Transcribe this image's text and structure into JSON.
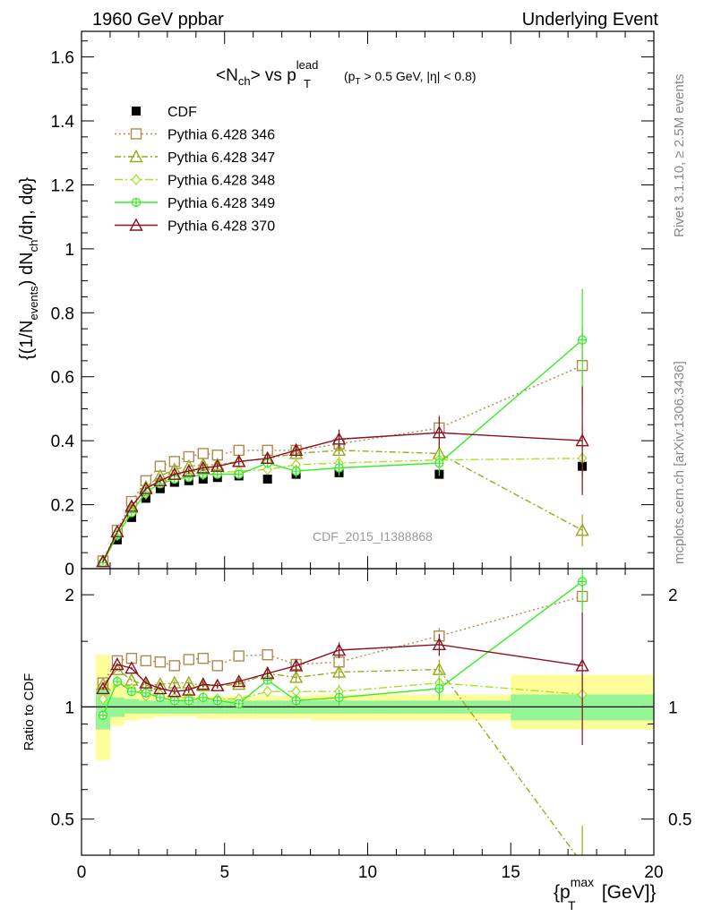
{
  "header": {
    "left": "1960 GeV ppbar",
    "right": "Underlying Event"
  },
  "side": {
    "rivet": "Rivet 3.1.10, ≥ 2.5M events",
    "mcplots": "mcplots.cern.ch [arXiv:1306.3436]"
  },
  "plot_title": {
    "main": "<N",
    "main_sub": "ch",
    "mid": "> vs p",
    "mid_sup": "lead",
    "mid_sub": "T",
    "cut": "(p",
    "cut_sub": "T",
    "cut_rest": " > 0.5 GeV, |η| < 0.8)"
  },
  "watermark": "CDF_2015_I1388868",
  "y_label_main": {
    "a": "{(1/N",
    "a_sub": "events",
    "b": ") dN",
    "b_sub": "ch",
    "c": "/dη, dφ}"
  },
  "y_label_ratio": "Ratio to CDF",
  "x_label": {
    "a": "{p",
    "sup": "max",
    "sub": "T",
    "b": " [GeV]}"
  },
  "colors": {
    "cdf": "#000000",
    "p346": "#b08a4e",
    "p347": "#9aaa1a",
    "p348": "#a9e025",
    "p349": "#33ee22",
    "p370": "#8b1020",
    "band_outer": "#fdfd9a",
    "band_inner": "#95f595"
  },
  "chart_data": [
    {
      "type": "scatter",
      "title": "<Nch> vs pT lead (pT > 0.5 GeV, |eta| < 0.8)",
      "ylabel": "{(1/Nevents) dNch/deta, dphi}",
      "xlim": [
        0,
        20
      ],
      "ylim": [
        0,
        1.68
      ],
      "yticks": [
        0,
        0.2,
        0.4,
        0.6,
        0.8,
        1,
        1.2,
        1.4,
        1.6
      ],
      "ytick_labels": [
        "0",
        "0.2",
        "0.4",
        "0.6",
        "0.8",
        "1",
        "1.2",
        "1.4",
        "1.6"
      ],
      "legend_position": "top-left",
      "x": [
        0.75,
        1.25,
        1.75,
        2.25,
        2.75,
        3.25,
        3.75,
        4.25,
        4.75,
        5.5,
        6.5,
        7.5,
        9.0,
        12.5,
        17.5
      ],
      "series": [
        {
          "name": "CDF",
          "key": "cdf",
          "style": "data",
          "values": [
            0.02,
            0.09,
            0.16,
            0.22,
            0.25,
            0.27,
            0.275,
            0.28,
            0.285,
            0.29,
            0.28,
            0.295,
            0.3,
            0.295,
            0.32
          ],
          "errors": [
            0.003,
            0.004,
            0.005,
            0.006,
            0.006,
            0.006,
            0.006,
            0.006,
            0.006,
            0.007,
            0.007,
            0.008,
            0.01,
            0.012,
            0.03
          ]
        },
        {
          "name": "Pythia 6.428 346",
          "key": "p346",
          "style": "square-dotted",
          "values": [
            0.024,
            0.12,
            0.21,
            0.275,
            0.32,
            0.335,
            0.35,
            0.36,
            0.355,
            0.37,
            0.37,
            0.37,
            0.39,
            0.44,
            0.635
          ],
          "errors": [
            0.003,
            0.004,
            0.005,
            0.006,
            0.007,
            0.008,
            0.008,
            0.009,
            0.01,
            0.012,
            0.015,
            0.02,
            0.025,
            0.04,
            0.12
          ]
        },
        {
          "name": "Pythia 6.428 347",
          "key": "p347",
          "style": "triangle-dashdot",
          "values": [
            0.023,
            0.115,
            0.19,
            0.255,
            0.29,
            0.31,
            0.32,
            0.325,
            0.325,
            0.335,
            0.345,
            0.36,
            0.37,
            0.36,
            0.12
          ],
          "errors": [
            0.003,
            0.004,
            0.005,
            0.006,
            0.007,
            0.008,
            0.008,
            0.009,
            0.01,
            0.012,
            0.015,
            0.02,
            0.025,
            0.04,
            0.05
          ]
        },
        {
          "name": "Pythia 6.428 348",
          "key": "p348",
          "style": "diamond-dashdot",
          "values": [
            0.021,
            0.105,
            0.18,
            0.235,
            0.27,
            0.285,
            0.29,
            0.295,
            0.3,
            0.305,
            0.31,
            0.325,
            0.33,
            0.34,
            0.345
          ],
          "errors": [
            0.003,
            0.004,
            0.005,
            0.006,
            0.007,
            0.008,
            0.008,
            0.009,
            0.01,
            0.012,
            0.015,
            0.02,
            0.025,
            0.04,
            0.1
          ]
        },
        {
          "name": "Pythia 6.428 349",
          "key": "p349",
          "style": "cross-solid",
          "values": [
            0.019,
            0.105,
            0.175,
            0.24,
            0.265,
            0.28,
            0.285,
            0.295,
            0.295,
            0.295,
            0.33,
            0.305,
            0.315,
            0.33,
            0.715
          ],
          "errors": [
            0.003,
            0.004,
            0.005,
            0.006,
            0.007,
            0.008,
            0.008,
            0.009,
            0.01,
            0.012,
            0.015,
            0.02,
            0.025,
            0.04,
            0.16
          ]
        },
        {
          "name": "Pythia 6.428 370",
          "key": "p370",
          "style": "triangle-solid",
          "values": [
            0.022,
            0.115,
            0.195,
            0.25,
            0.275,
            0.295,
            0.305,
            0.315,
            0.32,
            0.335,
            0.345,
            0.37,
            0.405,
            0.425,
            0.4
          ],
          "errors": [
            0.003,
            0.004,
            0.005,
            0.006,
            0.007,
            0.008,
            0.008,
            0.009,
            0.01,
            0.012,
            0.015,
            0.02,
            0.03,
            0.05,
            0.17
          ]
        }
      ]
    },
    {
      "type": "scatter",
      "title": "Ratio to CDF",
      "ylabel": "Ratio to CDF",
      "xlabel": "{pT max [GeV]}",
      "xlim": [
        0,
        20
      ],
      "ylim": [
        0.4,
        2.35
      ],
      "yscale": "log",
      "yticks": [
        0.5,
        1,
        2
      ],
      "ytick_labels": [
        "0.5",
        "1",
        "2"
      ],
      "xticks": [
        0,
        5,
        10,
        15,
        20
      ],
      "xtick_labels": [
        "0",
        "5",
        "10",
        "15",
        "20"
      ],
      "x": [
        0.75,
        1.25,
        1.75,
        2.25,
        2.75,
        3.25,
        3.75,
        4.25,
        4.75,
        5.5,
        6.5,
        7.5,
        9.0,
        12.5,
        17.5
      ],
      "bands": {
        "edges": [
          0.5,
          1.0,
          1.5,
          2.0,
          2.5,
          3.0,
          3.5,
          4.0,
          4.5,
          5.0,
          6.0,
          7.0,
          8.0,
          10.0,
          15.0,
          20.0
        ],
        "outer_lo": [
          0.72,
          0.89,
          0.92,
          0.93,
          0.94,
          0.94,
          0.94,
          0.93,
          0.93,
          0.93,
          0.93,
          0.93,
          0.92,
          0.92,
          0.87
        ],
        "outer_hi": [
          1.38,
          1.16,
          1.11,
          1.08,
          1.07,
          1.07,
          1.07,
          1.07,
          1.07,
          1.07,
          1.07,
          1.07,
          1.08,
          1.08,
          1.22
        ],
        "inner_lo": [
          0.87,
          0.94,
          0.96,
          0.96,
          0.96,
          0.96,
          0.96,
          0.96,
          0.96,
          0.96,
          0.96,
          0.96,
          0.96,
          0.96,
          0.92
        ],
        "inner_hi": [
          1.12,
          1.06,
          1.05,
          1.04,
          1.04,
          1.04,
          1.04,
          1.04,
          1.04,
          1.04,
          1.04,
          1.04,
          1.04,
          1.04,
          1.08
        ]
      },
      "series": [
        {
          "name": "Pythia 6.428 346",
          "key": "p346",
          "style": "square-dotted",
          "values": [
            1.16,
            1.33,
            1.35,
            1.33,
            1.32,
            1.29,
            1.34,
            1.35,
            1.29,
            1.37,
            1.38,
            1.3,
            1.32,
            1.55,
            1.98
          ],
          "errors": [
            0.01,
            0.01,
            0.01,
            0.01,
            0.01,
            0.02,
            0.02,
            0.02,
            0.02,
            0.02,
            0.03,
            0.04,
            0.05,
            0.08,
            0.2
          ]
        },
        {
          "name": "Pythia 6.428 347",
          "key": "p347",
          "style": "triangle-dashdot",
          "values": [
            1.15,
            1.26,
            1.18,
            1.14,
            1.15,
            1.16,
            1.16,
            1.14,
            1.14,
            1.15,
            1.23,
            1.2,
            1.24,
            1.26,
            0.38
          ],
          "errors": [
            0.01,
            0.01,
            0.01,
            0.01,
            0.01,
            0.02,
            0.02,
            0.02,
            0.02,
            0.02,
            0.03,
            0.04,
            0.05,
            0.08,
            0.1
          ]
        },
        {
          "name": "Pythia 6.428 348",
          "key": "p348",
          "style": "diamond-dashdot",
          "values": [
            1.05,
            1.17,
            1.12,
            1.07,
            1.08,
            1.06,
            1.06,
            1.06,
            1.05,
            1.05,
            1.1,
            1.1,
            1.1,
            1.16,
            1.08
          ],
          "errors": [
            0.01,
            0.01,
            0.01,
            0.01,
            0.01,
            0.02,
            0.02,
            0.02,
            0.02,
            0.02,
            0.03,
            0.04,
            0.05,
            0.08,
            0.15
          ]
        },
        {
          "name": "Pythia 6.428 349",
          "key": "p349",
          "style": "cross-solid",
          "values": [
            0.95,
            1.17,
            1.1,
            1.09,
            1.06,
            1.04,
            1.04,
            1.06,
            1.04,
            1.02,
            1.18,
            1.04,
            1.06,
            1.12,
            2.17
          ],
          "errors": [
            0.01,
            0.01,
            0.01,
            0.01,
            0.01,
            0.02,
            0.02,
            0.02,
            0.02,
            0.02,
            0.03,
            0.04,
            0.05,
            0.08,
            0.35
          ]
        },
        {
          "name": "Pythia 6.428 370",
          "key": "p370",
          "style": "triangle-solid",
          "values": [
            1.12,
            1.3,
            1.27,
            1.16,
            1.12,
            1.1,
            1.11,
            1.15,
            1.14,
            1.17,
            1.23,
            1.29,
            1.42,
            1.47,
            1.29
          ],
          "errors": [
            0.01,
            0.01,
            0.01,
            0.01,
            0.01,
            0.02,
            0.02,
            0.02,
            0.02,
            0.02,
            0.03,
            0.05,
            0.07,
            0.1,
            0.5
          ]
        }
      ]
    }
  ]
}
